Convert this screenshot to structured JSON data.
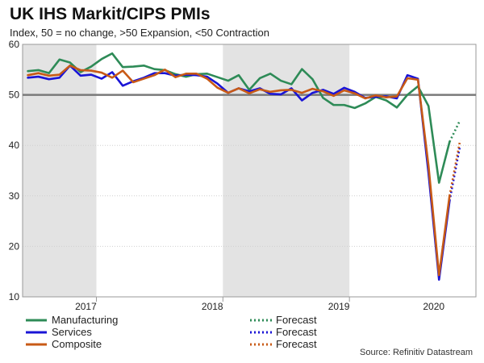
{
  "chart_data": {
    "type": "line",
    "title": "UK IHS Markit/CIPS PMIs",
    "subtitle": "Index, 50 = no change, >50 Expansion, <50 Contraction",
    "source": "Source: Refinitiv Datastream",
    "xlabel": "",
    "ylabel": "",
    "ylim": [
      10,
      60
    ],
    "yticks": [
      10,
      20,
      30,
      40,
      50,
      60
    ],
    "reference_line": 50,
    "year_labels": [
      {
        "label": "2017",
        "center_month": 5.5
      },
      {
        "label": "2018",
        "center_month": 17.5
      },
      {
        "label": "2019",
        "center_month": 29.5
      },
      {
        "label": "2020",
        "center_month": 38.5
      }
    ],
    "shaded_years": [
      {
        "start_month": -0.5,
        "end_month": 6.5
      },
      {
        "start_month": 18.5,
        "end_month": 30.5
      }
    ],
    "x_range": [
      -0.5,
      42.5
    ],
    "series": [
      {
        "name": "Manufacturing",
        "color": "#2e8b57",
        "values": [
          54.7,
          54.9,
          54.3,
          57.0,
          56.4,
          54.5,
          55.6,
          57.1,
          58.2,
          55.5,
          55.6,
          55.8,
          55.1,
          54.9,
          54.1,
          53.6,
          54.1,
          54.2,
          53.5,
          52.8,
          53.9,
          51.0,
          53.3,
          54.2,
          52.8,
          52.1,
          55.1,
          53.1,
          49.4,
          48.0,
          48.0,
          47.4,
          48.3,
          49.6,
          48.9,
          47.5,
          50.0,
          51.7,
          47.8,
          32.6,
          40.7
        ],
        "forecast": [
          40.7,
          45.0
        ],
        "forecast_label": "Forecast"
      },
      {
        "name": "Services",
        "color": "#1a14d6",
        "values": [
          53.4,
          53.6,
          53.1,
          53.4,
          55.8,
          53.8,
          54.0,
          53.2,
          54.5,
          51.8,
          52.7,
          53.4,
          54.3,
          54.3,
          53.8,
          54.0,
          53.9,
          53.6,
          52.2,
          50.4,
          51.3,
          50.7,
          51.3,
          50.2,
          50.1,
          51.3,
          48.9,
          50.4,
          51.0,
          50.2,
          51.4,
          50.6,
          49.4,
          49.6,
          49.7,
          49.3,
          53.9,
          53.2,
          34.5,
          13.4,
          29.0
        ],
        "forecast": [
          29.0,
          40.0
        ],
        "forecast_label": "Forecast"
      },
      {
        "name": "Composite",
        "color": "#c85a16",
        "values": [
          53.9,
          54.3,
          53.8,
          54.0,
          55.8,
          54.9,
          54.8,
          54.4,
          53.4,
          54.8,
          52.5,
          53.2,
          53.9,
          55.0,
          53.5,
          54.2,
          54.2,
          53.2,
          51.4,
          50.4,
          51.3,
          50.3,
          51.1,
          50.6,
          50.9,
          51.0,
          50.4,
          51.2,
          50.7,
          49.8,
          50.9,
          50.3,
          49.3,
          49.9,
          49.5,
          49.7,
          53.3,
          53.0,
          36.0,
          14.3,
          30.0
        ],
        "forecast": [
          30.0,
          41.0
        ],
        "forecast_label": "Forecast"
      }
    ]
  }
}
